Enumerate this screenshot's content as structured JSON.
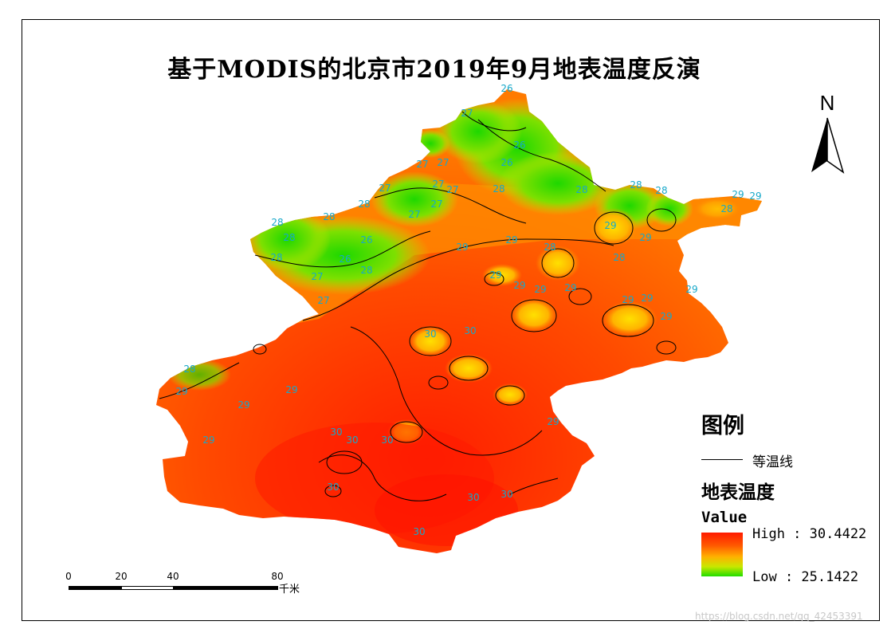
{
  "title": "基于MODIS的北京市2019年9月地表温度反演",
  "north_arrow": {
    "label": "N"
  },
  "legend": {
    "title": "图例",
    "contour_label": "等温线",
    "layer_title": "地表温度",
    "field": "Value",
    "high_label": "High : 30.4422",
    "low_label": "Low : 25.1422",
    "colors": {
      "high": "#ff1a00",
      "mid": "#ffb000",
      "low": "#22dd00"
    }
  },
  "scale_bar": {
    "ticks": [
      "0",
      "20",
      "40",
      "80"
    ],
    "unit": "千米"
  },
  "isotherm_labels": [
    {
      "text": "26"
    },
    {
      "text": "26"
    },
    {
      "text": "26"
    },
    {
      "text": "26"
    },
    {
      "text": "26"
    },
    {
      "text": "27"
    },
    {
      "text": "27"
    },
    {
      "text": "27"
    },
    {
      "text": "27"
    },
    {
      "text": "27"
    },
    {
      "text": "27"
    },
    {
      "text": "27"
    },
    {
      "text": "27"
    },
    {
      "text": "27"
    },
    {
      "text": "27"
    },
    {
      "text": "28"
    },
    {
      "text": "28"
    },
    {
      "text": "28"
    },
    {
      "text": "28"
    },
    {
      "text": "28"
    },
    {
      "text": "28"
    },
    {
      "text": "28"
    },
    {
      "text": "28"
    },
    {
      "text": "28"
    },
    {
      "text": "28"
    },
    {
      "text": "28"
    },
    {
      "text": "28"
    },
    {
      "text": "28"
    },
    {
      "text": "28"
    },
    {
      "text": "29"
    },
    {
      "text": "29"
    },
    {
      "text": "29"
    },
    {
      "text": "29"
    },
    {
      "text": "29"
    },
    {
      "text": "29"
    },
    {
      "text": "29"
    },
    {
      "text": "29"
    },
    {
      "text": "29"
    },
    {
      "text": "29"
    },
    {
      "text": "29"
    },
    {
      "text": "29"
    },
    {
      "text": "29"
    },
    {
      "text": "29"
    },
    {
      "text": "29"
    },
    {
      "text": "29"
    },
    {
      "text": "29"
    },
    {
      "text": "29"
    },
    {
      "text": "29"
    },
    {
      "text": "30"
    },
    {
      "text": "30"
    },
    {
      "text": "30"
    },
    {
      "text": "30"
    },
    {
      "text": "30"
    },
    {
      "text": "30"
    },
    {
      "text": "30"
    },
    {
      "text": "30"
    },
    {
      "text": "30"
    }
  ],
  "watermark": "https://blog.csdn.net/qq_42453391"
}
